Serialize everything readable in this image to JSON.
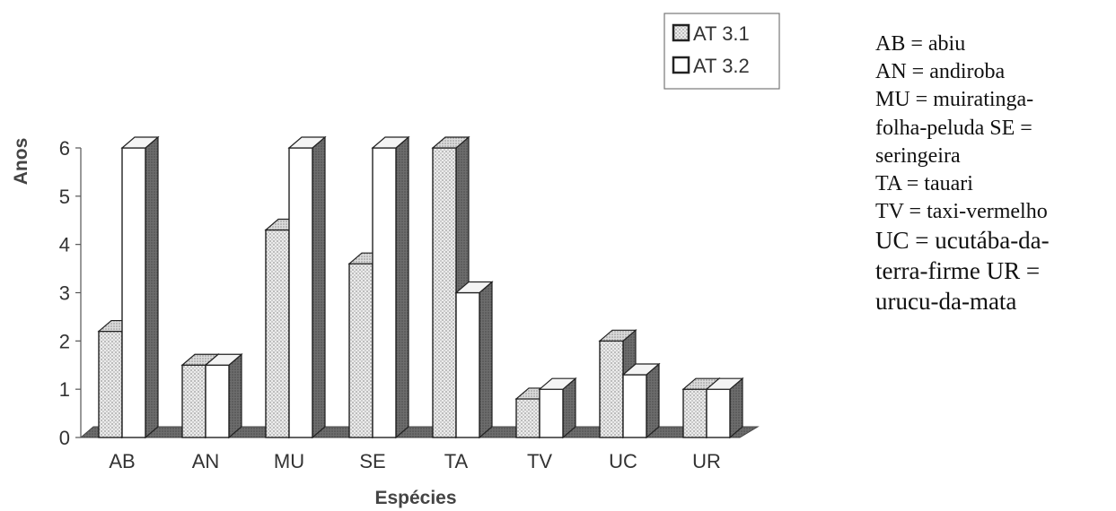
{
  "chart_data": {
    "type": "bar",
    "title": "",
    "xlabel": "Espécies",
    "ylabel": "Anos",
    "categories": [
      "AB",
      "AN",
      "MU",
      "SE",
      "TA",
      "TV",
      "UC",
      "UR"
    ],
    "series": [
      {
        "name": "AT 3.1",
        "values": [
          2.2,
          1.5,
          4.3,
          3.6,
          6.0,
          0.8,
          2.0,
          1.0
        ],
        "color": "#e2e2e2",
        "pattern": "dotted"
      },
      {
        "name": "AT 3.2",
        "values": [
          6.0,
          1.5,
          6.0,
          6.0,
          3.0,
          1.0,
          1.3,
          1.0
        ],
        "color": "#ffffff",
        "pattern": "none"
      }
    ],
    "yticks": [
      "0",
      "1",
      "2",
      "3",
      "4",
      "5",
      "6"
    ],
    "ylim": [
      0,
      6
    ],
    "grid": false,
    "legend_position": "top-right",
    "style": "3d",
    "side_color": "#6b6b6b"
  },
  "species_key": [
    "AB = abiu",
    "AN = andiroba",
    "MU = muiratinga-",
    "folha-peluda SE =",
    "seringeira",
    "TA = tauari",
    "TV = taxi-vermelho",
    "UC = ucutába-da-",
    "terra-firme UR =",
    "urucu-da-mata"
  ]
}
